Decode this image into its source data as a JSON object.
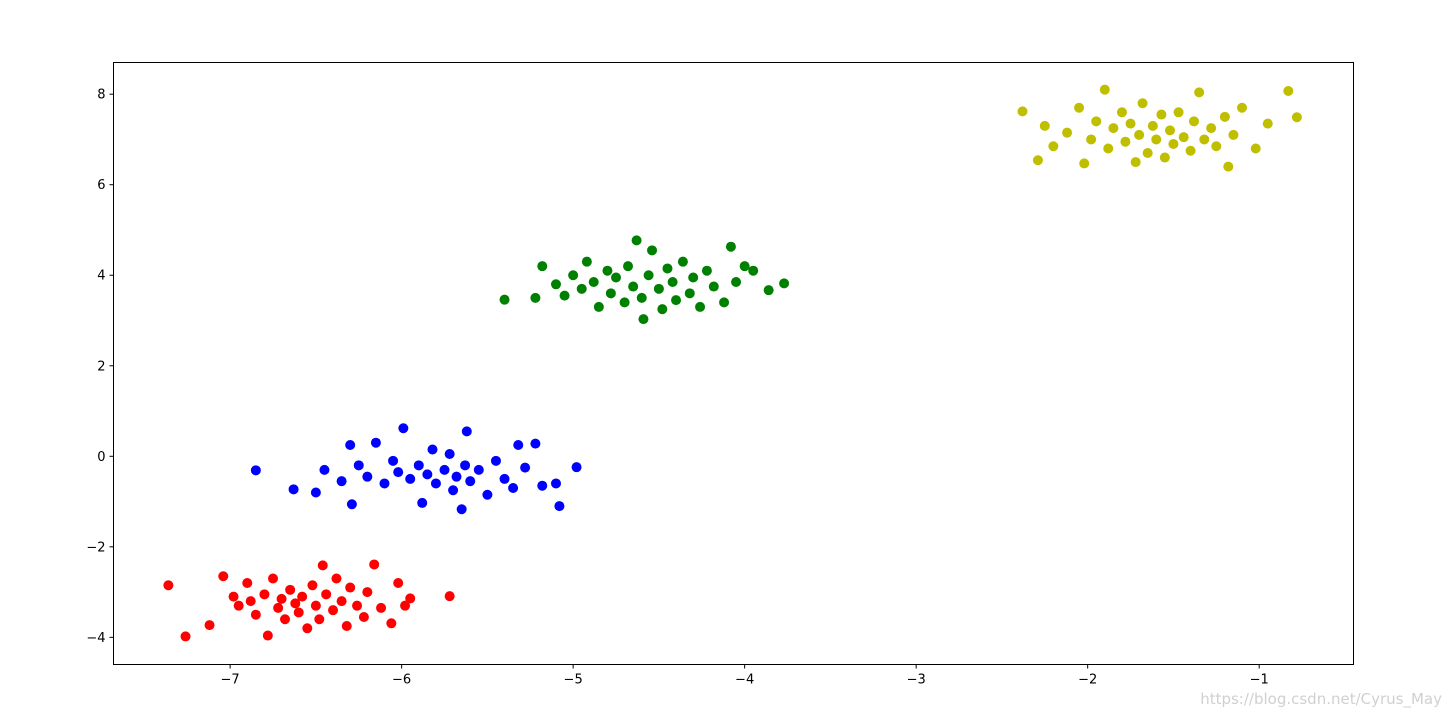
{
  "chart_data": {
    "type": "scatter",
    "title": "",
    "xlabel": "",
    "ylabel": "",
    "xlim": [
      -7.68,
      -0.45
    ],
    "ylim": [
      -4.6,
      8.7
    ],
    "xticks": [
      -7,
      -6,
      -5,
      -4,
      -3,
      -2,
      -1
    ],
    "yticks": [
      -4,
      -2,
      0,
      2,
      4,
      6,
      8
    ],
    "xtick_labels": [
      "−7",
      "−6",
      "−5",
      "−4",
      "−3",
      "−2",
      "−1"
    ],
    "ytick_labels": [
      "−4",
      "−2",
      "0",
      "2",
      "4",
      "6",
      "8"
    ],
    "grid": false,
    "legend": "none",
    "series": [
      {
        "color": "#ff0000",
        "points": [
          [
            -7.36,
            -2.85
          ],
          [
            -7.26,
            -3.98
          ],
          [
            -7.12,
            -3.73
          ],
          [
            -7.04,
            -2.65
          ],
          [
            -6.98,
            -3.1
          ],
          [
            -6.95,
            -3.3
          ],
          [
            -6.9,
            -2.8
          ],
          [
            -6.88,
            -3.2
          ],
          [
            -6.85,
            -3.5
          ],
          [
            -6.8,
            -3.05
          ],
          [
            -6.78,
            -3.96
          ],
          [
            -6.75,
            -2.7
          ],
          [
            -6.72,
            -3.35
          ],
          [
            -6.7,
            -3.15
          ],
          [
            -6.68,
            -3.6
          ],
          [
            -6.65,
            -2.95
          ],
          [
            -6.62,
            -3.25
          ],
          [
            -6.6,
            -3.45
          ],
          [
            -6.58,
            -3.1
          ],
          [
            -6.55,
            -3.8
          ],
          [
            -6.52,
            -2.85
          ],
          [
            -6.5,
            -3.3
          ],
          [
            -6.48,
            -3.6
          ],
          [
            -6.46,
            -2.41
          ],
          [
            -6.44,
            -3.05
          ],
          [
            -6.4,
            -3.4
          ],
          [
            -6.38,
            -2.7
          ],
          [
            -6.35,
            -3.2
          ],
          [
            -6.32,
            -3.75
          ],
          [
            -6.3,
            -2.9
          ],
          [
            -6.26,
            -3.3
          ],
          [
            -6.22,
            -3.55
          ],
          [
            -6.2,
            -3.0
          ],
          [
            -6.16,
            -2.39
          ],
          [
            -6.12,
            -3.35
          ],
          [
            -6.06,
            -3.69
          ],
          [
            -6.02,
            -2.8
          ],
          [
            -5.98,
            -3.3
          ],
          [
            -5.95,
            -3.14
          ],
          [
            -5.72,
            -3.09
          ]
        ]
      },
      {
        "color": "#0000ff",
        "points": [
          [
            -6.85,
            -0.31
          ],
          [
            -6.63,
            -0.73
          ],
          [
            -6.5,
            -0.8
          ],
          [
            -6.45,
            -0.3
          ],
          [
            -6.35,
            -0.55
          ],
          [
            -6.3,
            0.25
          ],
          [
            -6.29,
            -1.06
          ],
          [
            -6.25,
            -0.2
          ],
          [
            -6.2,
            -0.45
          ],
          [
            -6.15,
            0.3
          ],
          [
            -6.1,
            -0.6
          ],
          [
            -6.05,
            -0.1
          ],
          [
            -6.02,
            -0.35
          ],
          [
            -5.99,
            0.62
          ],
          [
            -5.95,
            -0.5
          ],
          [
            -5.9,
            -0.2
          ],
          [
            -5.88,
            -1.03
          ],
          [
            -5.85,
            -0.4
          ],
          [
            -5.82,
            0.15
          ],
          [
            -5.8,
            -0.6
          ],
          [
            -5.75,
            -0.3
          ],
          [
            -5.72,
            0.05
          ],
          [
            -5.7,
            -0.75
          ],
          [
            -5.68,
            -0.45
          ],
          [
            -5.65,
            -1.17
          ],
          [
            -5.63,
            -0.2
          ],
          [
            -5.62,
            0.55
          ],
          [
            -5.6,
            -0.55
          ],
          [
            -5.55,
            -0.3
          ],
          [
            -5.5,
            -0.85
          ],
          [
            -5.45,
            -0.1
          ],
          [
            -5.4,
            -0.5
          ],
          [
            -5.35,
            -0.7
          ],
          [
            -5.32,
            0.25
          ],
          [
            -5.28,
            -0.25
          ],
          [
            -5.22,
            0.28
          ],
          [
            -5.18,
            -0.65
          ],
          [
            -5.1,
            -0.6
          ],
          [
            -5.08,
            -1.1
          ],
          [
            -4.98,
            -0.24
          ]
        ]
      },
      {
        "color": "#008000",
        "points": [
          [
            -5.4,
            3.46
          ],
          [
            -5.22,
            3.5
          ],
          [
            -5.18,
            4.2
          ],
          [
            -5.1,
            3.8
          ],
          [
            -5.05,
            3.55
          ],
          [
            -5.0,
            4.0
          ],
          [
            -4.95,
            3.7
          ],
          [
            -4.92,
            4.3
          ],
          [
            -4.88,
            3.85
          ],
          [
            -4.85,
            3.3
          ],
          [
            -4.8,
            4.1
          ],
          [
            -4.78,
            3.6
          ],
          [
            -4.75,
            3.95
          ],
          [
            -4.7,
            3.4
          ],
          [
            -4.68,
            4.2
          ],
          [
            -4.65,
            3.75
          ],
          [
            -4.63,
            4.77
          ],
          [
            -4.6,
            3.5
          ],
          [
            -4.59,
            3.03
          ],
          [
            -4.56,
            4.0
          ],
          [
            -4.54,
            4.55
          ],
          [
            -4.5,
            3.7
          ],
          [
            -4.48,
            3.25
          ],
          [
            -4.45,
            4.15
          ],
          [
            -4.42,
            3.85
          ],
          [
            -4.4,
            3.45
          ],
          [
            -4.36,
            4.3
          ],
          [
            -4.32,
            3.6
          ],
          [
            -4.3,
            3.95
          ],
          [
            -4.26,
            3.3
          ],
          [
            -4.22,
            4.1
          ],
          [
            -4.18,
            3.75
          ],
          [
            -4.12,
            3.4
          ],
          [
            -4.08,
            4.63
          ],
          [
            -4.05,
            3.85
          ],
          [
            -4.0,
            4.2
          ],
          [
            -3.95,
            4.1
          ],
          [
            -3.86,
            3.67
          ],
          [
            -3.77,
            3.82
          ]
        ]
      },
      {
        "color": "#bfbf00",
        "points": [
          [
            -2.38,
            7.62
          ],
          [
            -2.29,
            6.54
          ],
          [
            -2.25,
            7.3
          ],
          [
            -2.2,
            6.85
          ],
          [
            -2.12,
            7.15
          ],
          [
            -2.05,
            7.7
          ],
          [
            -2.02,
            6.47
          ],
          [
            -1.98,
            7.0
          ],
          [
            -1.95,
            7.4
          ],
          [
            -1.9,
            8.1
          ],
          [
            -1.88,
            6.8
          ],
          [
            -1.85,
            7.25
          ],
          [
            -1.8,
            7.6
          ],
          [
            -1.78,
            6.95
          ],
          [
            -1.75,
            7.35
          ],
          [
            -1.72,
            6.5
          ],
          [
            -1.7,
            7.1
          ],
          [
            -1.68,
            7.8
          ],
          [
            -1.65,
            6.7
          ],
          [
            -1.62,
            7.3
          ],
          [
            -1.6,
            7.0
          ],
          [
            -1.57,
            7.55
          ],
          [
            -1.55,
            6.6
          ],
          [
            -1.52,
            7.2
          ],
          [
            -1.5,
            6.9
          ],
          [
            -1.47,
            7.6
          ],
          [
            -1.44,
            7.05
          ],
          [
            -1.4,
            6.75
          ],
          [
            -1.38,
            7.4
          ],
          [
            -1.35,
            8.04
          ],
          [
            -1.32,
            7.0
          ],
          [
            -1.28,
            7.25
          ],
          [
            -1.25,
            6.85
          ],
          [
            -1.2,
            7.5
          ],
          [
            -1.18,
            6.4
          ],
          [
            -1.15,
            7.1
          ],
          [
            -1.1,
            7.7
          ],
          [
            -1.02,
            6.8
          ],
          [
            -0.95,
            7.35
          ],
          [
            -0.83,
            8.07
          ],
          [
            -0.78,
            7.49
          ]
        ]
      }
    ]
  },
  "watermark": "https://blog.csdn.net/Cyrus_May"
}
